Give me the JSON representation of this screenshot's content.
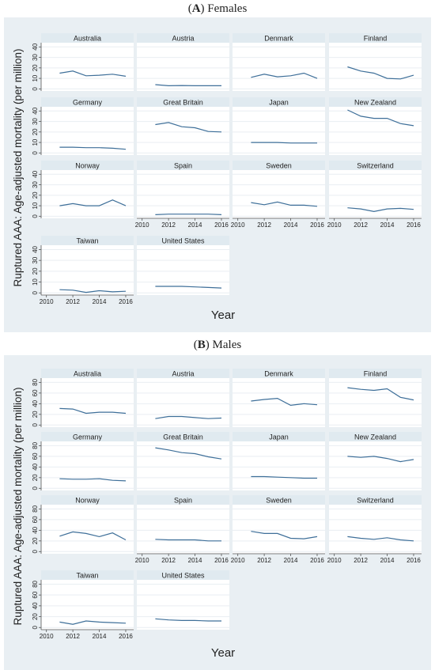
{
  "chart_data": [
    {
      "type": "line",
      "title": "(A) Females",
      "title_letter": "A",
      "title_rest": "Females",
      "ylabel": "Ruptured AAA: Age-adjusted mortality (per million)",
      "xlabel": "Year",
      "x": [
        2011,
        2012,
        2013,
        2014,
        2015,
        2016
      ],
      "xticks": [
        2010,
        2012,
        2014,
        2016
      ],
      "xlim": [
        2009.6,
        2016.6
      ],
      "ylim": [
        -2,
        44
      ],
      "yticks": [
        0,
        10,
        20,
        30,
        40
      ],
      "panels": [
        {
          "name": "Australia",
          "values": [
            15,
            17,
            12.5,
            13,
            14,
            12
          ]
        },
        {
          "name": "Austria",
          "values": [
            4,
            3,
            3.2,
            3,
            3,
            3
          ]
        },
        {
          "name": "Denmark",
          "values": [
            11,
            14,
            11.5,
            12.5,
            15,
            10
          ]
        },
        {
          "name": "Finland",
          "values": [
            21,
            17,
            15,
            10,
            9.5,
            13
          ]
        },
        {
          "name": "Germany",
          "values": [
            5.5,
            5.5,
            5,
            5,
            4.5,
            3.5
          ]
        },
        {
          "name": "Great Britain",
          "values": [
            27,
            29,
            25,
            24,
            20.5,
            20
          ]
        },
        {
          "name": "Japan",
          "values": [
            10,
            10,
            10,
            9.5,
            9.5,
            9.5
          ]
        },
        {
          "name": "New Zealand",
          "values": [
            41,
            35,
            33,
            33,
            28,
            26
          ]
        },
        {
          "name": "Norway",
          "values": [
            10,
            12,
            10,
            10,
            15.5,
            10
          ]
        },
        {
          "name": "Spain",
          "values": [
            1.5,
            2,
            2,
            2,
            2,
            1.5
          ]
        },
        {
          "name": "Sweden",
          "values": [
            13,
            11,
            13.5,
            10.5,
            10.5,
            9.5
          ]
        },
        {
          "name": "Switzerland",
          "values": [
            8,
            7,
            4.5,
            7,
            7.5,
            6.5
          ]
        },
        {
          "name": "Taiwan",
          "values": [
            3,
            2.5,
            0.5,
            2,
            1,
            1.5
          ]
        },
        {
          "name": "United States",
          "values": [
            6,
            6,
            6,
            5.5,
            5,
            4.5
          ]
        }
      ]
    },
    {
      "type": "line",
      "title": "(B) Males",
      "title_letter": "B",
      "title_rest": "Males",
      "ylabel": "Ruptured AAA: Age-adjusted mortality (per million)",
      "xlabel": "Year",
      "x": [
        2011,
        2012,
        2013,
        2014,
        2015,
        2016
      ],
      "xticks": [
        2010,
        2012,
        2014,
        2016
      ],
      "xlim": [
        2009.6,
        2016.6
      ],
      "ylim": [
        -4,
        88
      ],
      "yticks": [
        0,
        20,
        40,
        60,
        80
      ],
      "panels": [
        {
          "name": "Australia",
          "values": [
            31,
            30,
            22,
            24,
            24,
            22
          ]
        },
        {
          "name": "Austria",
          "values": [
            12,
            16,
            16,
            14,
            12,
            13
          ]
        },
        {
          "name": "Denmark",
          "values": [
            45,
            48,
            50,
            37,
            40,
            38
          ]
        },
        {
          "name": "Finland",
          "values": [
            70,
            67,
            65,
            68,
            52,
            47
          ]
        },
        {
          "name": "Germany",
          "values": [
            18,
            17,
            17,
            18,
            15,
            14
          ]
        },
        {
          "name": "Great Britain",
          "values": [
            76,
            72,
            67,
            65,
            59,
            55
          ]
        },
        {
          "name": "Japan",
          "values": [
            22,
            22,
            21,
            20,
            19,
            19
          ]
        },
        {
          "name": "New Zealand",
          "values": [
            60,
            58,
            60,
            56,
            50,
            54
          ]
        },
        {
          "name": "Norway",
          "values": [
            29,
            37,
            34,
            28,
            35,
            22
          ]
        },
        {
          "name": "Spain",
          "values": [
            23,
            22,
            22,
            22,
            20,
            20
          ]
        },
        {
          "name": "Sweden",
          "values": [
            38,
            34,
            34,
            25,
            24,
            28
          ]
        },
        {
          "name": "Switzerland",
          "values": [
            28,
            25,
            23,
            26,
            22,
            20
          ]
        },
        {
          "name": "Taiwan",
          "values": [
            10,
            6,
            12,
            10,
            9,
            8
          ]
        },
        {
          "name": "United States",
          "values": [
            16,
            14,
            13,
            13,
            12,
            12
          ]
        }
      ]
    }
  ],
  "colors": {
    "figure_bg": "#e9eff3",
    "plot_bg": "#ffffff",
    "strip_bg": "#e0eaf0",
    "line": "#3e6f99",
    "axis": "#555555",
    "grid": "#e9eef2",
    "text": "#222222"
  }
}
